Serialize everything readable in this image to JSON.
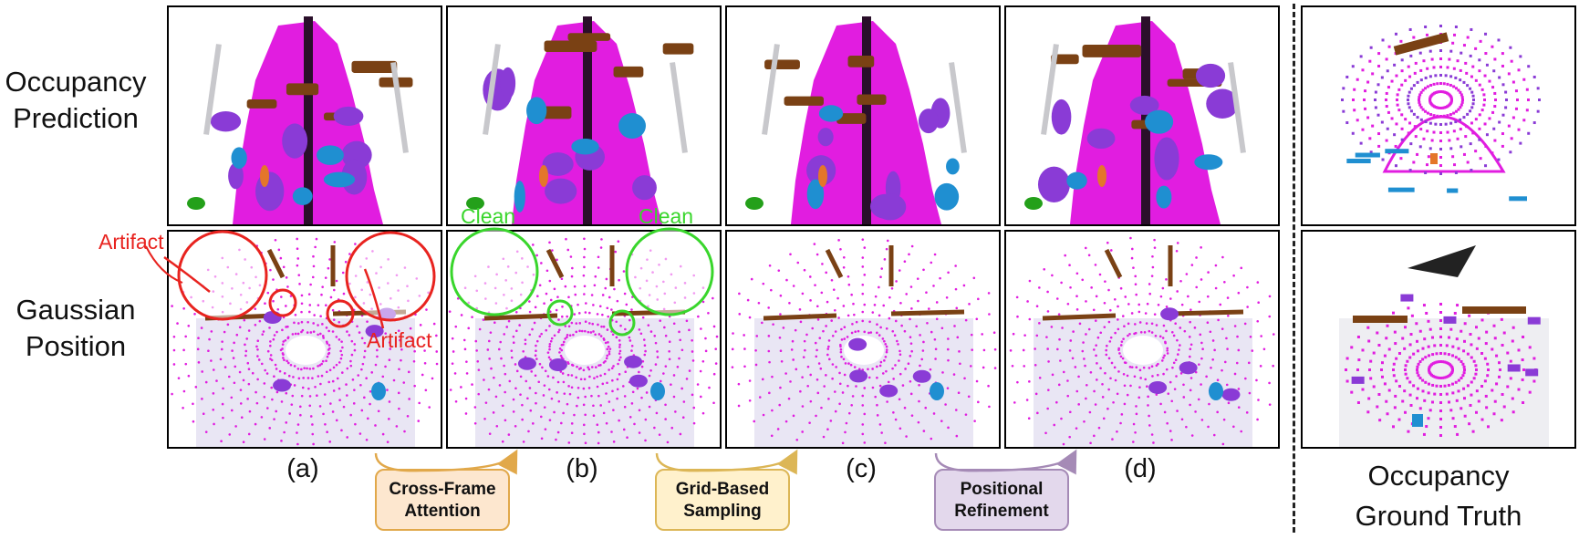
{
  "row_labels": {
    "occupancy": [
      "Occupancy",
      "Prediction"
    ],
    "gaussian": [
      "Gaussian",
      "Position"
    ]
  },
  "captions": [
    "(a)",
    "(b)",
    "(c)",
    "(d)"
  ],
  "ground_truth_label": [
    "Occupancy",
    "Ground Truth"
  ],
  "steps": [
    {
      "lines": [
        "Cross-Frame",
        "Attention"
      ],
      "fill": "#fde7cf",
      "border": "#e1a84a"
    },
    {
      "lines": [
        "Grid-Based",
        "Sampling"
      ],
      "fill": "#fff1cc",
      "border": "#dcb656"
    },
    {
      "lines": [
        "Positional",
        "Refinement"
      ],
      "fill": "#e3d8ec",
      "border": "#a58ab6"
    }
  ],
  "annotations": {
    "artifact": "Artifact",
    "clean": "Clean",
    "artifact_color": "#e8231f",
    "clean_color": "#39d62c"
  },
  "colors": {
    "road": "#e11de0",
    "vehicle": "#8a3bd6",
    "building": "#7a4114",
    "barrier": "#c8c8cc",
    "pedestrian": "#1f8fd1",
    "vegetation": "#24a01a",
    "trafficcone": "#e4762a"
  }
}
